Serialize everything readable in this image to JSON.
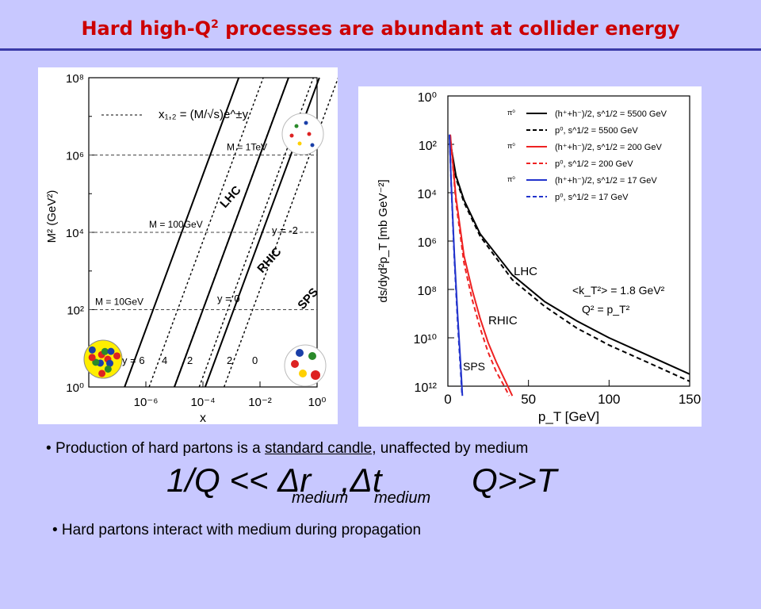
{
  "title": {
    "prefix": "Hard high-Q",
    "sup": "2",
    "suffix": " processes are abundant at collider energy"
  },
  "bullets": {
    "b1_marker": "•",
    "b1_pre": "Production of hard partons is a ",
    "b1_under": "standard candle",
    "b1_post": ", unaffected by medium",
    "b2": "• Hard partons interact with medium during propagation"
  },
  "formula": {
    "left": "1/Q << Δr",
    "sub1": "medium",
    "comma": ",Δt",
    "sub2": "medium",
    "right": "Q>>T"
  },
  "chart_data": [
    {
      "type": "line",
      "xlabel": "x",
      "ylabel": "M² (GeV²)",
      "xscale": "log",
      "yscale": "log",
      "xlim": [
        1e-08,
        1
      ],
      "ylim": [
        1,
        100000000.0
      ],
      "x_ticks": [
        "10⁻⁶",
        "10⁻⁴",
        "10⁻²",
        "10⁰"
      ],
      "y_ticks": [
        "10⁰",
        "10²",
        "10⁴",
        "10⁶",
        "10⁸"
      ],
      "legend": "x₁,₂ = (M/√s)e^±y",
      "mass_lines": [
        {
          "label": "M = 10GeV",
          "M2": 100
        },
        {
          "label": "M = 100GeV",
          "M2": 10000
        },
        {
          "label": "M = 1TeV",
          "M2": 1000000
        }
      ],
      "colliders": [
        {
          "name": "LHC",
          "x_at_M2_1": 1.8e-07
        },
        {
          "name": "RHIC",
          "x_at_M2_1": 1e-05
        },
        {
          "name": "SPS",
          "x_at_M2_1": 0.00012
        }
      ],
      "y_labels": [
        {
          "text": "y = 6",
          "x_at_M2_1": 1.8e-07
        },
        {
          "text": "4",
          "x_at_M2_1": 1.3e-06
        },
        {
          "text": "2",
          "x_at_M2_1": 9.8e-06
        },
        {
          "text": "2",
          "x_at_M2_1": 7.4e-05
        },
        {
          "text": "0",
          "x_at_M2_1": 1e-05
        },
        {
          "text": "0",
          "x_at_M2_1": 0.00055
        }
      ],
      "annotations": [
        "y = -2",
        "y = 0"
      ]
    },
    {
      "type": "line",
      "xlabel": "p_T [GeV]",
      "ylabel": "ds/dyd²p_T [mb GeV⁻²]",
      "xlim": [
        0,
        150
      ],
      "ylim_exp": [
        0,
        12
      ],
      "x_ticks": [
        0,
        50,
        100,
        150
      ],
      "y_ticks": [
        "10⁰",
        "10²",
        "10⁴",
        "10⁶",
        "10⁸",
        "10¹⁰",
        "10¹²"
      ],
      "series": [
        {
          "name": "(h⁺+h⁻)/2, s^1/2 = 5500 GeV",
          "color": "#000000",
          "dashed": false,
          "x": [
            1.5,
            5,
            10,
            20,
            40,
            60,
            80,
            100,
            120,
            150
          ],
          "exp": [
            1.9,
            3.3,
            4.3,
            5.7,
            7.4,
            8.5,
            9.3,
            10.0,
            10.6,
            11.5
          ]
        },
        {
          "name": "p⁰, s^1/2 = 5500 GeV",
          "color": "#000000",
          "dashed": true,
          "x": [
            1.5,
            5,
            10,
            20,
            40,
            60,
            80,
            100,
            120,
            150
          ],
          "exp": [
            1.9,
            3.4,
            4.4,
            5.8,
            7.6,
            8.7,
            9.6,
            10.3,
            10.9,
            11.8
          ]
        },
        {
          "name": "(h⁺+h⁻)/2, s^1/2 = 200 GeV",
          "color": "#ee2222",
          "dashed": false,
          "x": [
            1.5,
            5,
            10,
            15,
            20,
            25,
            30,
            35,
            40
          ],
          "exp": [
            1.6,
            4.2,
            6.6,
            8.0,
            9.2,
            10.2,
            11.0,
            11.7,
            12.4
          ]
        },
        {
          "name": "p⁰, s^1/2 = 200 GeV",
          "color": "#ee2222",
          "dashed": true,
          "x": [
            1.5,
            5,
            10,
            15,
            20,
            25,
            30,
            35,
            38
          ],
          "exp": [
            1.6,
            4.4,
            6.9,
            8.4,
            9.6,
            10.6,
            11.4,
            12.0,
            12.4
          ]
        },
        {
          "name": "(h⁺+h⁻)/2, s^1/2 = 17 GeV",
          "color": "#2233cc",
          "dashed": false,
          "x": [
            1,
            2,
            4,
            6,
            8,
            9
          ],
          "exp": [
            1.6,
            3.5,
            6.5,
            9.0,
            11.2,
            12.4
          ]
        },
        {
          "name": "p⁰, s^1/2 = 17 GeV",
          "color": "#2233cc",
          "dashed": true,
          "x": [
            1,
            2,
            4,
            6,
            8,
            8.8
          ],
          "exp": [
            1.6,
            3.6,
            6.7,
            9.3,
            11.5,
            12.4
          ]
        }
      ],
      "legend_marker": "π⁰",
      "annotations": [
        "LHC",
        "RHIC",
        "SPS",
        "<k_T²> = 1.8 GeV²",
        "Q² = p_T²"
      ]
    }
  ]
}
